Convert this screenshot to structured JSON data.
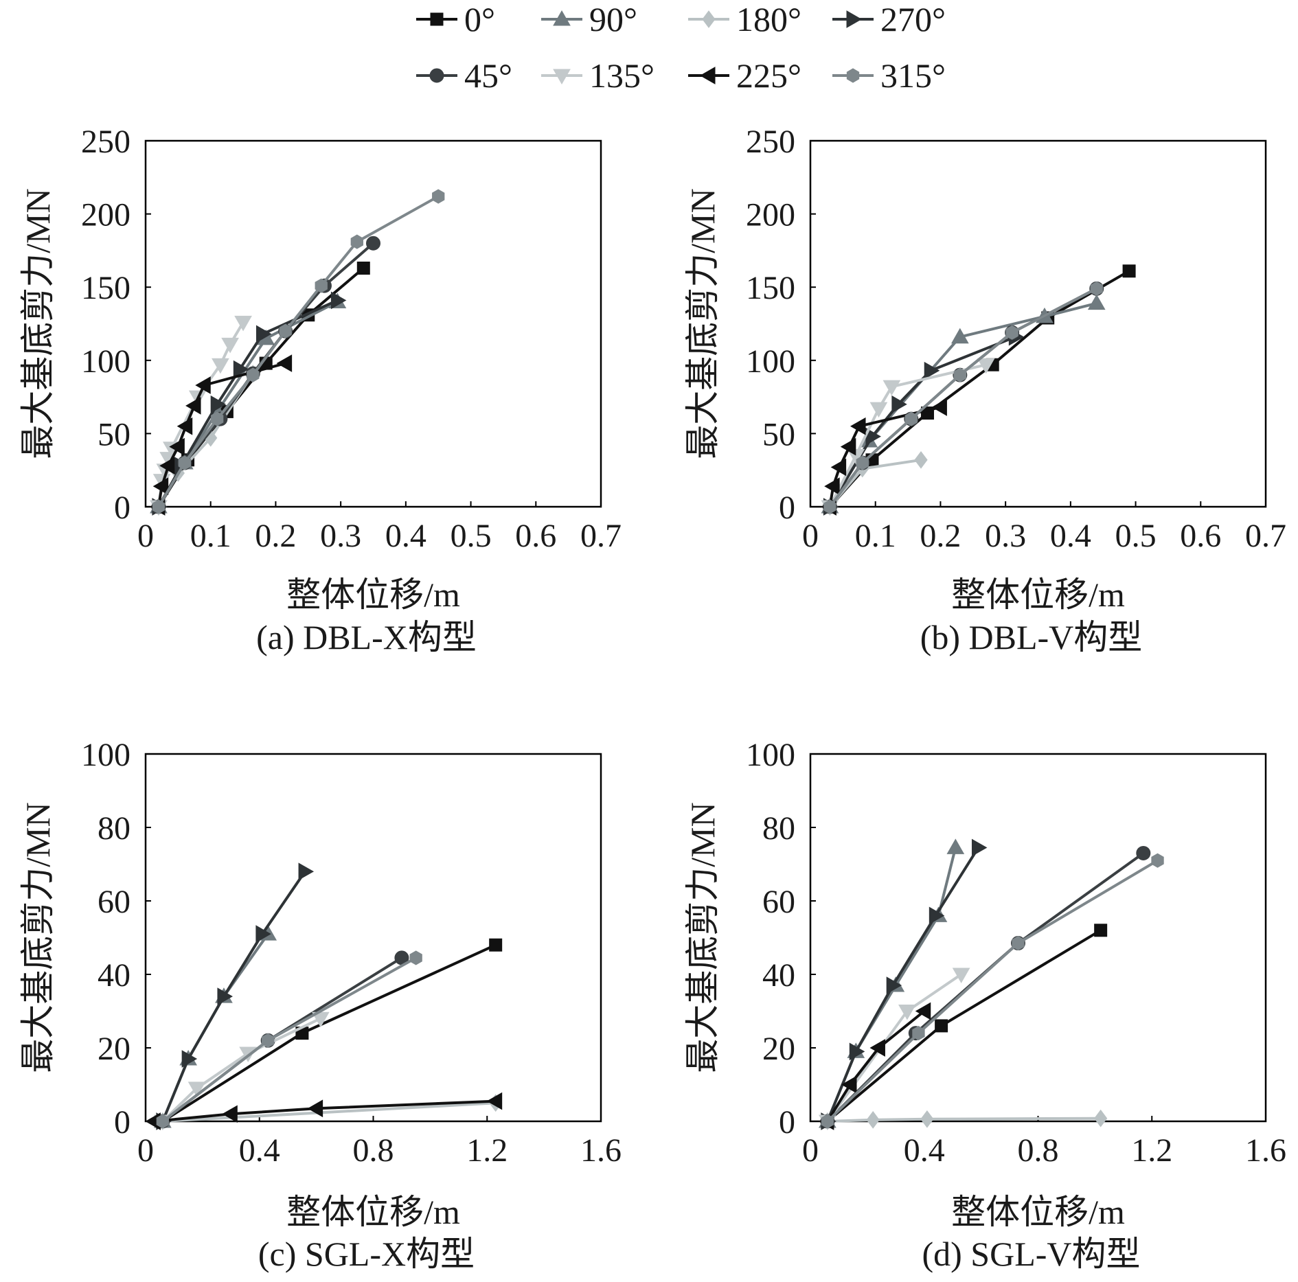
{
  "legend": {
    "entries": [
      {
        "label": "0°",
        "color": "#111111",
        "marker": "square"
      },
      {
        "label": "90°",
        "color": "#6f7a7f",
        "marker": "triangle-up"
      },
      {
        "label": "180°",
        "color": "#b9c1c3",
        "marker": "diamond"
      },
      {
        "label": "270°",
        "color": "#2e3336",
        "marker": "triangle-right"
      },
      {
        "label": "45°",
        "color": "#3a3f42",
        "marker": "circle"
      },
      {
        "label": "135°",
        "color": "#c3c9cb",
        "marker": "triangle-down"
      },
      {
        "label": "225°",
        "color": "#111111",
        "marker": "triangle-left"
      },
      {
        "label": "315°",
        "color": "#7e878b",
        "marker": "hexagon"
      }
    ]
  },
  "chart_data": [
    {
      "id": "a",
      "type": "line",
      "caption": "(a) DBL-X构型",
      "xlabel": "整体位移/m",
      "ylabel": "最大基底剪力/MN",
      "xlim": [
        0,
        0.7
      ],
      "ylim": [
        0,
        250
      ],
      "xticks": [
        0,
        0.1,
        0.2,
        0.3,
        0.4,
        0.5,
        0.6,
        0.7
      ],
      "xtick_labels": [
        "0",
        "0.1",
        "0.2",
        "0.3",
        "0.4",
        "0.5",
        "0.6",
        "0.7"
      ],
      "yticks": [
        0,
        50,
        100,
        150,
        200,
        250
      ],
      "ytick_labels": [
        "0",
        "50",
        "100",
        "150",
        "200",
        "250"
      ],
      "series": [
        {
          "name": "0°",
          "x": [
            0.02,
            0.065,
            0.125,
            0.185,
            0.25,
            0.335
          ],
          "y": [
            0,
            32,
            65,
            98,
            131,
            163
          ]
        },
        {
          "name": "90°",
          "x": [
            0.02,
            0.06,
            0.11,
            0.185,
            0.295
          ],
          "y": [
            0,
            30,
            65,
            115,
            140
          ]
        },
        {
          "name": "180°",
          "x": [
            0.02,
            0.05,
            0.1,
            0.165
          ],
          "y": [
            0,
            23,
            47,
            91
          ]
        },
        {
          "name": "270°",
          "x": [
            0.02,
            0.055,
            0.11,
            0.145,
            0.18,
            0.295
          ],
          "y": [
            0,
            28,
            70,
            94,
            118,
            141
          ]
        },
        {
          "name": "45°",
          "x": [
            0.02,
            0.06,
            0.115,
            0.165,
            0.215,
            0.275,
            0.35
          ],
          "y": [
            0,
            30,
            60,
            91,
            120,
            151,
            180
          ]
        },
        {
          "name": "135°",
          "x": [
            0.02,
            0.025,
            0.03,
            0.035,
            0.04,
            0.08,
            0.115,
            0.13,
            0.15
          ],
          "y": [
            0,
            18,
            25,
            33,
            40,
            75,
            97,
            111,
            126
          ]
        },
        {
          "name": "225°",
          "x": [
            0.02,
            0.025,
            0.035,
            0.05,
            0.062,
            0.075,
            0.09,
            0.215
          ],
          "y": [
            0,
            14,
            28,
            41,
            55,
            69,
            83,
            98
          ]
        },
        {
          "name": "315°",
          "x": [
            0.02,
            0.06,
            0.11,
            0.165,
            0.215,
            0.27,
            0.325,
            0.45
          ],
          "y": [
            0,
            30,
            60,
            90,
            120,
            151,
            181,
            212
          ]
        }
      ]
    },
    {
      "id": "b",
      "type": "line",
      "caption": "(b) DBL-V构型",
      "xlabel": "整体位移/m",
      "ylabel": "最大基底剪力/MN",
      "xlim": [
        0,
        0.7
      ],
      "ylim": [
        0,
        250
      ],
      "xticks": [
        0,
        0.1,
        0.2,
        0.3,
        0.4,
        0.5,
        0.6,
        0.7
      ],
      "xtick_labels": [
        "0",
        "0.1",
        "0.2",
        "0.3",
        "0.4",
        "0.5",
        "0.6",
        "0.7"
      ],
      "yticks": [
        0,
        50,
        100,
        150,
        200,
        250
      ],
      "ytick_labels": [
        "0",
        "50",
        "100",
        "150",
        "200",
        "250"
      ],
      "series": [
        {
          "name": "0°",
          "x": [
            0.03,
            0.095,
            0.18,
            0.28,
            0.365,
            0.49
          ],
          "y": [
            0,
            32,
            64,
            97,
            129,
            161
          ]
        },
        {
          "name": "90°",
          "x": [
            0.03,
            0.09,
            0.23,
            0.36,
            0.44
          ],
          "y": [
            0,
            45,
            116,
            130,
            139
          ]
        },
        {
          "name": "180°",
          "x": [
            0.03,
            0.08,
            0.17
          ],
          "y": [
            0,
            26,
            32
          ]
        },
        {
          "name": "270°",
          "x": [
            0.03,
            0.095,
            0.135,
            0.185,
            0.315
          ],
          "y": [
            0,
            48,
            70,
            93,
            116
          ]
        },
        {
          "name": "45°",
          "x": [
            0.03,
            0.08,
            0.155,
            0.23,
            0.31,
            0.44
          ],
          "y": [
            0,
            30,
            60,
            90,
            119,
            149
          ]
        },
        {
          "name": "135°",
          "x": [
            0.03,
            0.07,
            0.105,
            0.125,
            0.27
          ],
          "y": [
            0,
            35,
            67,
            82,
            97
          ]
        },
        {
          "name": "225°",
          "x": [
            0.03,
            0.035,
            0.045,
            0.06,
            0.075,
            0.2
          ],
          "y": [
            0,
            14,
            27,
            41,
            55,
            68
          ]
        },
        {
          "name": "315°",
          "x": [
            0.03,
            0.08,
            0.155,
            0.23,
            0.31,
            0.44
          ],
          "y": [
            0,
            30,
            60,
            90,
            119,
            149
          ]
        }
      ]
    },
    {
      "id": "c",
      "type": "line",
      "caption": "(c) SGL-X构型",
      "xlabel": "整体位移/m",
      "ylabel": "最大基底剪力/MN",
      "xlim": [
        0,
        1.6
      ],
      "ylim": [
        0,
        100
      ],
      "xticks": [
        0,
        0.4,
        0.8,
        1.2,
        1.6
      ],
      "xtick_labels": [
        "0",
        "0.4",
        "0.8",
        "1.2",
        "1.6"
      ],
      "yticks": [
        0,
        20,
        40,
        60,
        80,
        100
      ],
      "ytick_labels": [
        "0",
        "20",
        "40",
        "60",
        "80",
        "100"
      ],
      "series": [
        {
          "name": "0°",
          "x": [
            0.06,
            0.55,
            1.23
          ],
          "y": [
            0,
            24,
            48
          ]
        },
        {
          "name": "90°",
          "x": [
            0.06,
            0.15,
            0.275,
            0.43
          ],
          "y": [
            0,
            17,
            34,
            51
          ]
        },
        {
          "name": "180°",
          "x": [
            0.06,
            1.23
          ],
          "y": [
            0,
            5
          ]
        },
        {
          "name": "270°",
          "x": [
            0.06,
            0.15,
            0.275,
            0.41,
            0.56
          ],
          "y": [
            0,
            17,
            34,
            51,
            68
          ]
        },
        {
          "name": "45°",
          "x": [
            0.06,
            0.43,
            0.9
          ],
          "y": [
            0,
            22,
            44.5
          ]
        },
        {
          "name": "135°",
          "x": [
            0.06,
            0.18,
            0.36,
            0.615
          ],
          "y": [
            0,
            9,
            18.5,
            28
          ]
        },
        {
          "name": "225°",
          "x": [
            0.03,
            0.3,
            0.6,
            1.23
          ],
          "y": [
            0,
            2,
            3.5,
            5.5
          ]
        },
        {
          "name": "315°",
          "x": [
            0.06,
            0.43,
            0.95
          ],
          "y": [
            0,
            22,
            44.5
          ]
        }
      ]
    },
    {
      "id": "d",
      "type": "line",
      "caption": "(d) SGL-V构型",
      "xlabel": "整体位移/m",
      "ylabel": "最大基底剪力/MN",
      "xlim": [
        0,
        1.6
      ],
      "ylim": [
        0,
        100
      ],
      "xticks": [
        0,
        0.4,
        0.8,
        1.2,
        1.6
      ],
      "xtick_labels": [
        "0",
        "0.4",
        "0.8",
        "1.2",
        "1.6"
      ],
      "yticks": [
        0,
        20,
        40,
        60,
        80,
        100
      ],
      "ytick_labels": [
        "0",
        "20",
        "40",
        "60",
        "80",
        "100"
      ],
      "series": [
        {
          "name": "0°",
          "x": [
            0.06,
            0.46,
            1.02
          ],
          "y": [
            0,
            26,
            52
          ]
        },
        {
          "name": "90°",
          "x": [
            0.06,
            0.16,
            0.3,
            0.45,
            0.51
          ],
          "y": [
            0,
            19,
            37,
            56,
            74.5
          ]
        },
        {
          "name": "180°",
          "x": [
            0.06,
            0.22,
            0.41,
            1.02
          ],
          "y": [
            0,
            0.4,
            0.6,
            0.8
          ]
        },
        {
          "name": "270°",
          "x": [
            0.06,
            0.16,
            0.29,
            0.44,
            0.59
          ],
          "y": [
            0,
            19,
            37,
            56,
            74.5
          ]
        },
        {
          "name": "45°",
          "x": [
            0.06,
            0.37,
            0.73,
            1.17
          ],
          "y": [
            0,
            24,
            48.5,
            73
          ]
        },
        {
          "name": "135°",
          "x": [
            0.06,
            0.34,
            0.53
          ],
          "y": [
            0,
            30,
            40
          ]
        },
        {
          "name": "225°",
          "x": [
            0.06,
            0.14,
            0.24,
            0.4
          ],
          "y": [
            0,
            10,
            20,
            30
          ]
        },
        {
          "name": "315°",
          "x": [
            0.06,
            0.38,
            0.73,
            1.22
          ],
          "y": [
            0,
            24,
            48.5,
            71
          ]
        }
      ]
    }
  ]
}
